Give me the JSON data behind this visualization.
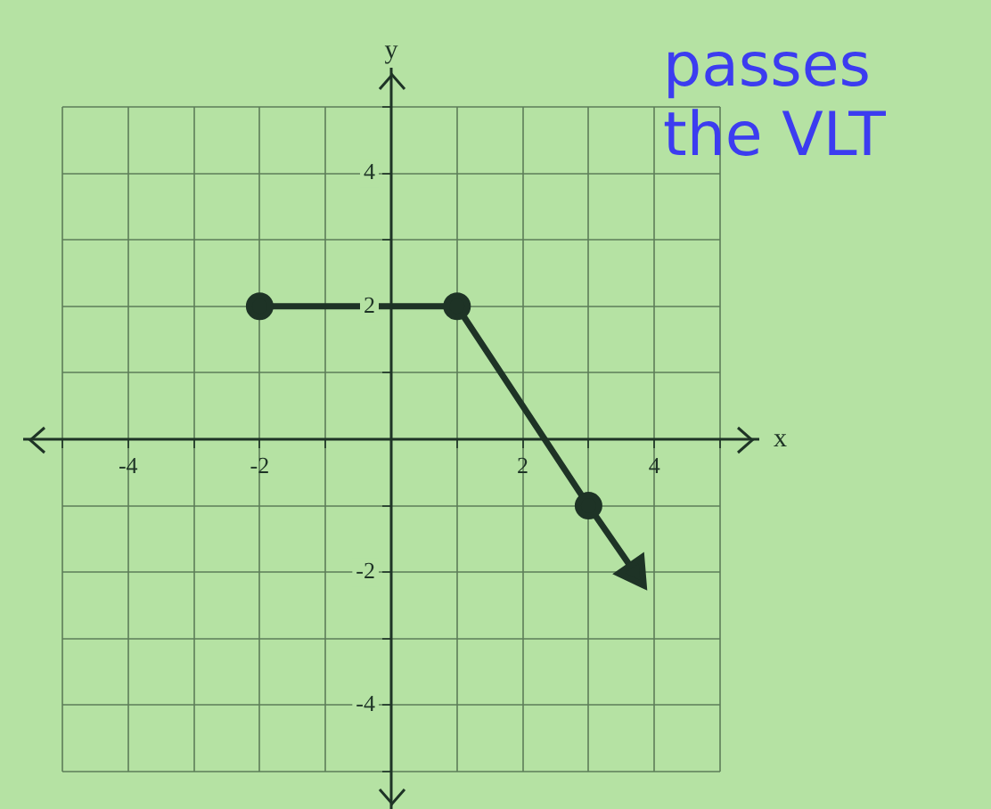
{
  "chart_data": {
    "type": "line",
    "xlabel": "x",
    "ylabel": "y",
    "annotations": [
      "passes the VLT"
    ],
    "xlim": [
      -5,
      5
    ],
    "ylim": [
      -5,
      5
    ],
    "xticks": [
      {
        "value": -5,
        "label": null
      },
      -4,
      {
        "value": -3,
        "label": null
      },
      -2,
      {
        "value": -1,
        "label": null
      },
      {
        "value": 0,
        "label": null
      },
      {
        "value": 1,
        "label": null
      },
      2,
      {
        "value": 3,
        "label": null
      },
      4,
      {
        "value": 5,
        "label": null
      }
    ],
    "yticks": [
      {
        "value": -5,
        "label": null
      },
      -4,
      {
        "value": -3,
        "label": null
      },
      -2,
      {
        "value": -1,
        "label": null
      },
      {
        "value": 0,
        "label": null
      },
      {
        "value": 1,
        "label": null
      },
      2,
      {
        "value": 3,
        "label": null
      },
      4,
      {
        "value": 5,
        "label": null
      }
    ],
    "grid": true,
    "legend": false,
    "marker": "circle",
    "line_style": "solid",
    "series": [
      {
        "color": "#1e3326",
        "x": [
          -2,
          1,
          3,
          3.7
        ],
        "values": [
          2,
          2,
          -1,
          -2
        ]
      }
    ]
  }
}
